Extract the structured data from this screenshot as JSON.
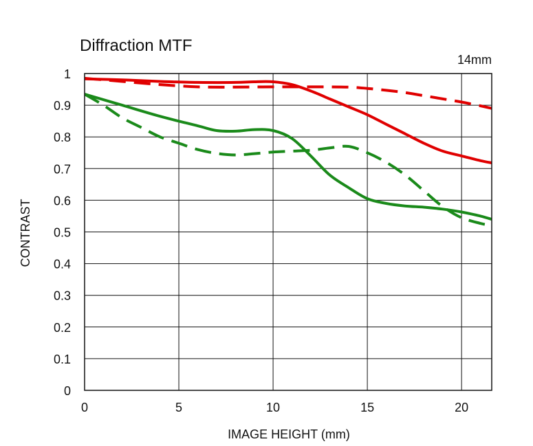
{
  "chart_data": {
    "type": "line",
    "title": "Diffraction MTF",
    "annotation": "14mm",
    "xlabel": "IMAGE HEIGHT (mm)",
    "ylabel": "CONTRAST",
    "xlim": [
      0,
      21.6
    ],
    "ylim": [
      0,
      1
    ],
    "x_ticks": [
      0,
      5,
      10,
      15,
      20
    ],
    "y_ticks": [
      0,
      0.1,
      0.2,
      0.3,
      0.4,
      0.5,
      0.6,
      0.7,
      0.8,
      0.9,
      1
    ],
    "x_tick_labels": [
      "0",
      "5",
      "10",
      "15",
      "20"
    ],
    "y_tick_labels": [
      "0",
      "0.1",
      "0.2",
      "0.3",
      "0.4",
      "0.5",
      "0.6",
      "0.7",
      "0.8",
      "0.9",
      "1"
    ],
    "grid": true,
    "series": [
      {
        "color": "#e00000",
        "style": "solid",
        "x": [
          0,
          2,
          4,
          6,
          8,
          9,
          10,
          11,
          12,
          13,
          14,
          15,
          16,
          17,
          18,
          19,
          20,
          21,
          21.6
        ],
        "y": [
          0.983,
          0.98,
          0.975,
          0.972,
          0.972,
          0.974,
          0.974,
          0.965,
          0.945,
          0.92,
          0.895,
          0.87,
          0.84,
          0.81,
          0.78,
          0.755,
          0.74,
          0.725,
          0.718
        ]
      },
      {
        "color": "#e00000",
        "style": "dashed",
        "x": [
          0,
          2,
          4,
          6,
          8,
          10,
          12,
          14,
          15,
          16,
          17,
          18,
          19,
          20,
          21,
          21.6
        ],
        "y": [
          0.985,
          0.975,
          0.965,
          0.958,
          0.957,
          0.958,
          0.958,
          0.957,
          0.953,
          0.947,
          0.94,
          0.93,
          0.92,
          0.91,
          0.898,
          0.89
        ]
      },
      {
        "color": "#1a8a1a",
        "style": "solid",
        "x": [
          0,
          2,
          4,
          6,
          7,
          8,
          9,
          10,
          11,
          12,
          13,
          14,
          15,
          16,
          17,
          18,
          19,
          20,
          21,
          21.6
        ],
        "y": [
          0.935,
          0.9,
          0.865,
          0.835,
          0.82,
          0.818,
          0.823,
          0.82,
          0.795,
          0.74,
          0.68,
          0.64,
          0.605,
          0.59,
          0.582,
          0.578,
          0.572,
          0.563,
          0.55,
          0.54
        ]
      },
      {
        "color": "#1a8a1a",
        "style": "dashed",
        "x": [
          0,
          1,
          2,
          3,
          4,
          5,
          6,
          7,
          8,
          9,
          10,
          11,
          12,
          13,
          14,
          15,
          16,
          17,
          18,
          19,
          20,
          21,
          21.6
        ],
        "y": [
          0.935,
          0.9,
          0.86,
          0.83,
          0.8,
          0.78,
          0.76,
          0.748,
          0.743,
          0.747,
          0.752,
          0.755,
          0.758,
          0.765,
          0.77,
          0.75,
          0.72,
          0.68,
          0.63,
          0.58,
          0.545,
          0.527,
          0.52
        ]
      }
    ]
  }
}
